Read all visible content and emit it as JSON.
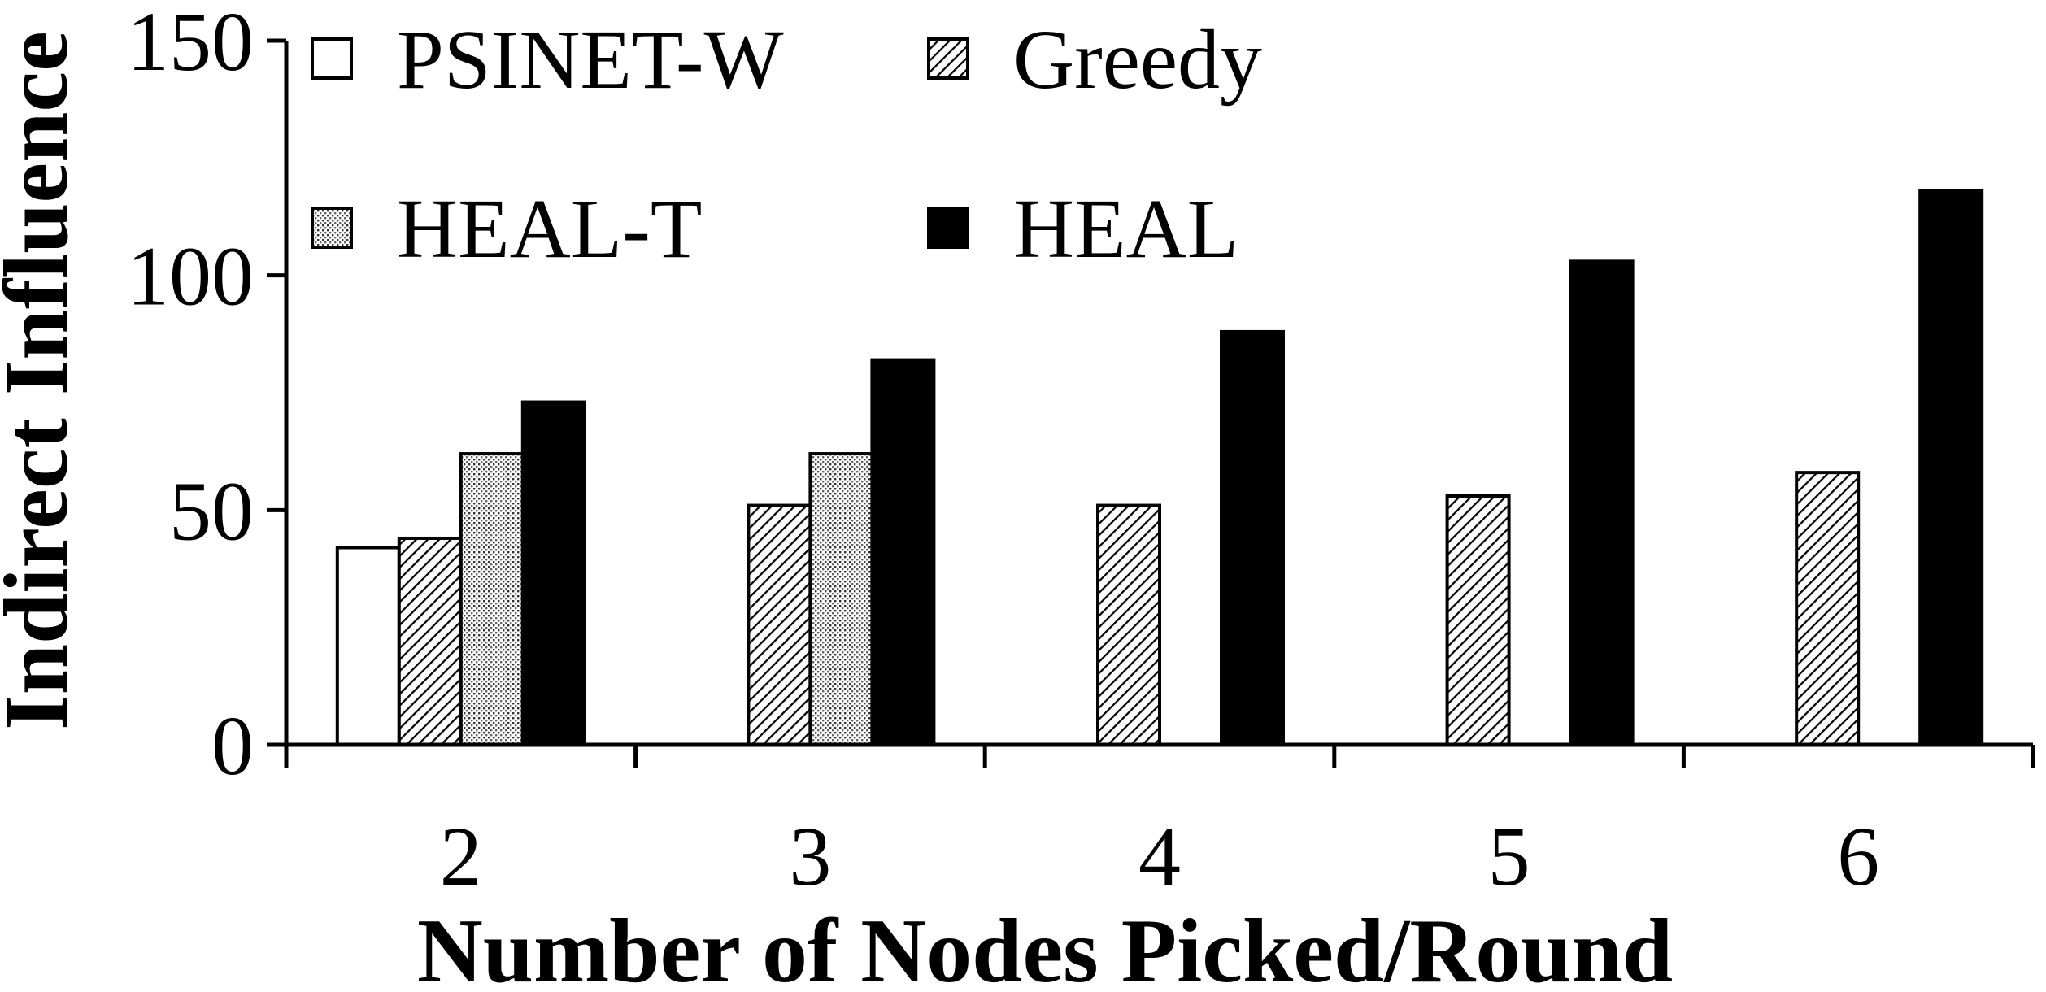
{
  "chart_data": {
    "type": "bar",
    "title": "",
    "xlabel": "Number of Nodes Picked/Round",
    "ylabel": "Indirect Influence",
    "categories": [
      "2",
      "3",
      "4",
      "5",
      "6"
    ],
    "ylim": [
      0,
      150
    ],
    "yticks": [
      "0",
      "50",
      "100",
      "150"
    ],
    "grid": false,
    "legend_position": "top-left",
    "series": [
      {
        "name": "PSINET-W",
        "pattern": "white",
        "values": [
          42,
          null,
          null,
          null,
          null
        ]
      },
      {
        "name": "Greedy",
        "pattern": "diagonal-hatch",
        "values": [
          44,
          51,
          51,
          53,
          58
        ]
      },
      {
        "name": "HEAL-T",
        "pattern": "dotted",
        "values": [
          62,
          62,
          null,
          null,
          null
        ]
      },
      {
        "name": "HEAL",
        "pattern": "black",
        "values": [
          73,
          82,
          88,
          103,
          118
        ]
      }
    ]
  }
}
